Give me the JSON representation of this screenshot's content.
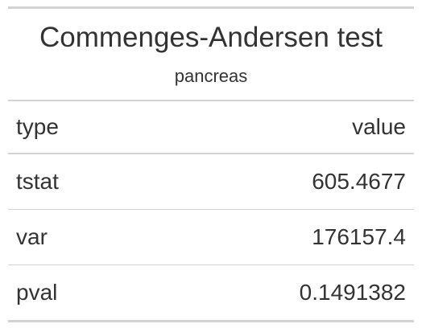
{
  "table": {
    "title": "Commenges-Andersen test",
    "subtitle": "pancreas",
    "columns": [
      "type",
      "value"
    ],
    "rows": [
      {
        "type": "tstat",
        "value": "605.4677"
      },
      {
        "type": "var",
        "value": "176157.4"
      },
      {
        "type": "pval",
        "value": "0.1491382"
      }
    ]
  }
}
